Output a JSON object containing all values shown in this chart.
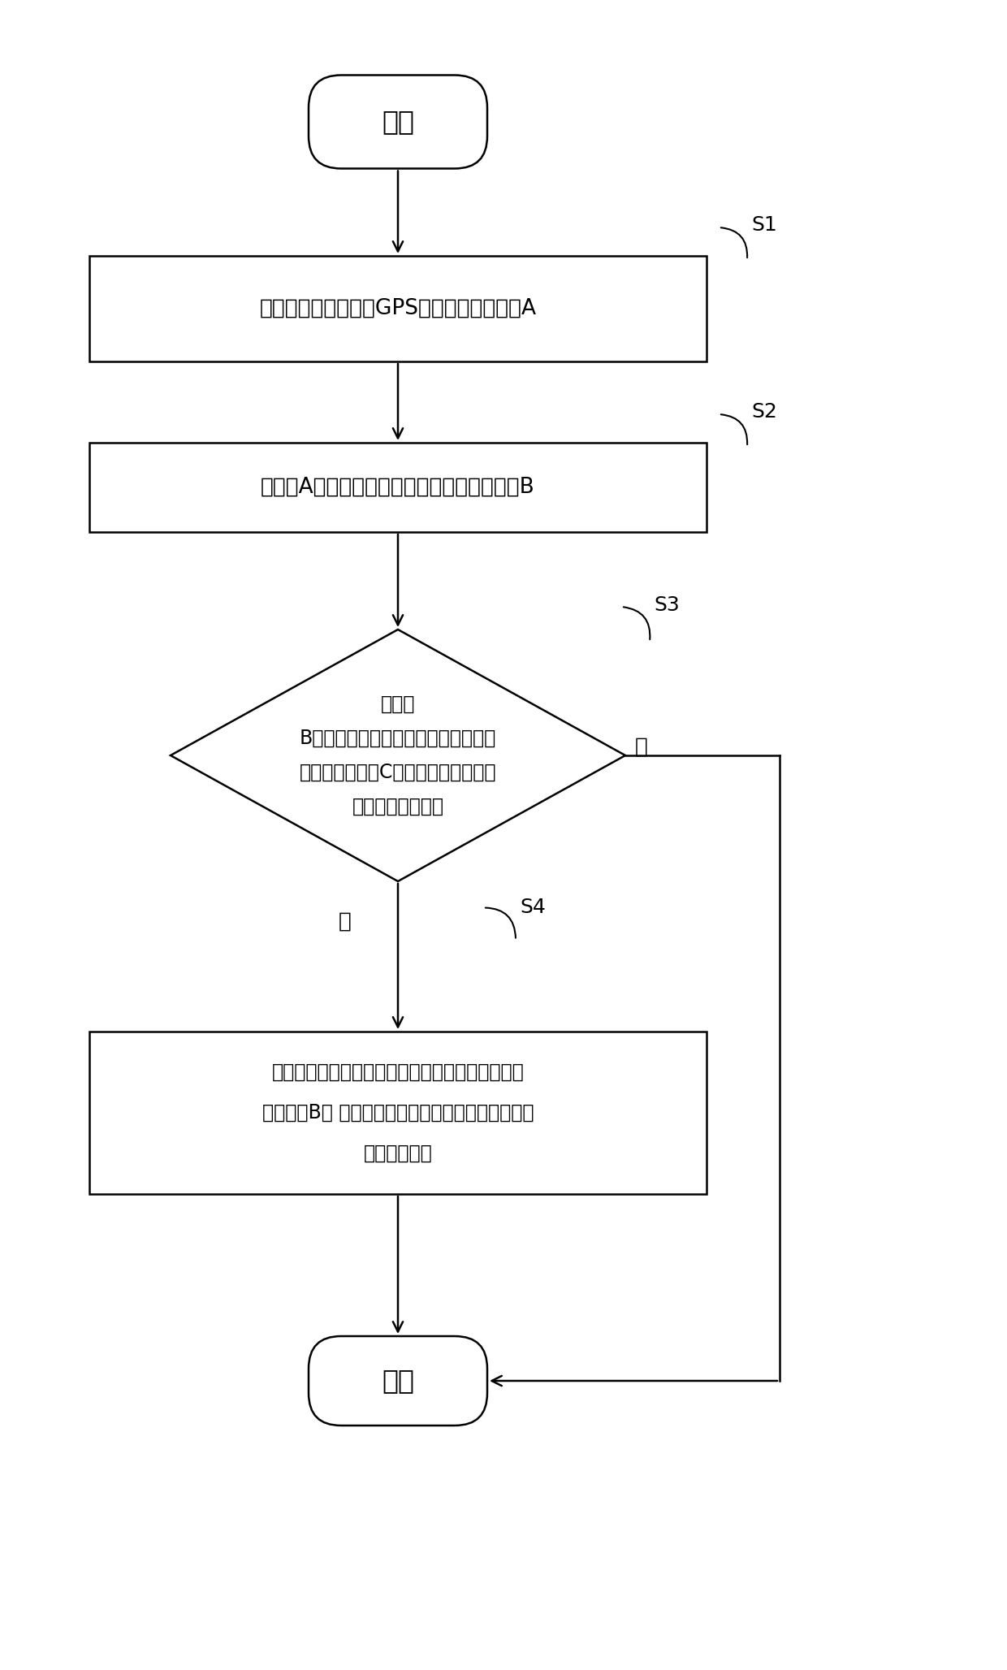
{
  "bg_color": "#ffffff",
  "line_color": "#000000",
  "text_color": "#000000",
  "start_text": "开始",
  "end_text": "结束",
  "box1_text": "实时获取当前位置下GPS的经纬度数据信息A",
  "box2_text": "调取与A对应匹配的磁倾角和磁偏角数据信息B",
  "diamond_line1": "将数据",
  "diamond_line2": "B与当前电子罗盘定向正在使用的磁倾",
  "diamond_line3": "角和磁偏角数据C进行比较，判断差値",
  "diamond_line4": "是否大于预设値？",
  "box4_line1": "将当前电子罗盘定向使用的磁倾角和磁偏角数据更",
  "box4_line2": "新为数据B； 并将其对应存储为一下次电子罗盘定向",
  "box4_line3": "时的初始数据",
  "label_s1": "S1",
  "label_s2": "S2",
  "label_s3": "S3",
  "label_s4": "S4",
  "yes_text": "是",
  "no_text": "否",
  "fig_w": 12.4,
  "fig_h": 20.56,
  "dpi": 100
}
